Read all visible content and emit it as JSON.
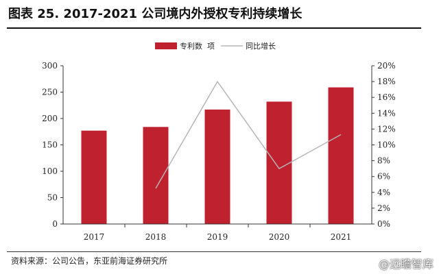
{
  "header": {
    "title": "图表 25. 2017-2021 公司境内外授权专利持续增长"
  },
  "footer": {
    "source": "资料来源：公司公告，东亚前海证券研究所",
    "watermark": "@远瞻智库"
  },
  "colors": {
    "bar": "#c0212e",
    "line": "#b5b5b5",
    "axis": "#333333"
  },
  "chart_data": {
    "type": "bar",
    "categories": [
      "2017",
      "2018",
      "2019",
      "2020",
      "2021"
    ],
    "series": [
      {
        "name": "专利数  项",
        "type": "bar",
        "axis": "left",
        "values": [
          177,
          184,
          217,
          232,
          259
        ]
      },
      {
        "name": "同比增长",
        "type": "line",
        "axis": "right",
        "values": [
          null,
          4.5,
          18.0,
          7.0,
          11.3
        ]
      }
    ],
    "y_left": {
      "min": 0,
      "max": 300,
      "ticks": [
        "0",
        "50",
        "100",
        "150",
        "200",
        "250",
        "300"
      ]
    },
    "y_right": {
      "min": 0,
      "max": 20,
      "ticks": [
        "0%",
        "2%",
        "4%",
        "6%",
        "8%",
        "10%",
        "12%",
        "14%",
        "16%",
        "18%",
        "20%"
      ]
    },
    "grid": false,
    "legend": "top-center"
  }
}
